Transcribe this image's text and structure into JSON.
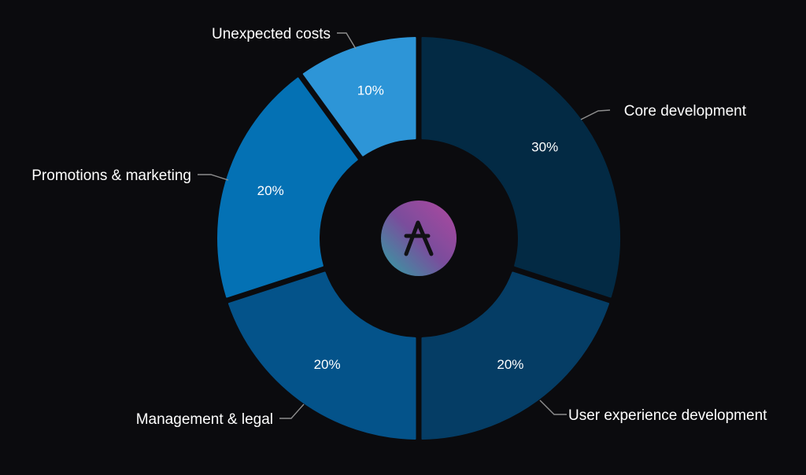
{
  "chart_data": {
    "type": "pie",
    "variant": "donut",
    "title": "",
    "categories": [
      "Core development",
      "User experience development",
      "Management & legal",
      "Promotions & marketing",
      "Unexpected costs"
    ],
    "values": [
      30,
      20,
      20,
      20,
      10
    ],
    "value_labels": [
      "30%",
      "20%",
      "20%",
      "20%",
      "10%"
    ],
    "colors": [
      "#032a44",
      "#053d65",
      "#04538a",
      "#0471b4",
      "#2d95d7"
    ],
    "label_color": "#ffffff",
    "callout_line_color": "#8e8e8e",
    "center_logo": {
      "icon": "a-logo-icon",
      "gradient": [
        "#2fa3a4",
        "#7a4d9c",
        "#b0489f"
      ]
    }
  }
}
